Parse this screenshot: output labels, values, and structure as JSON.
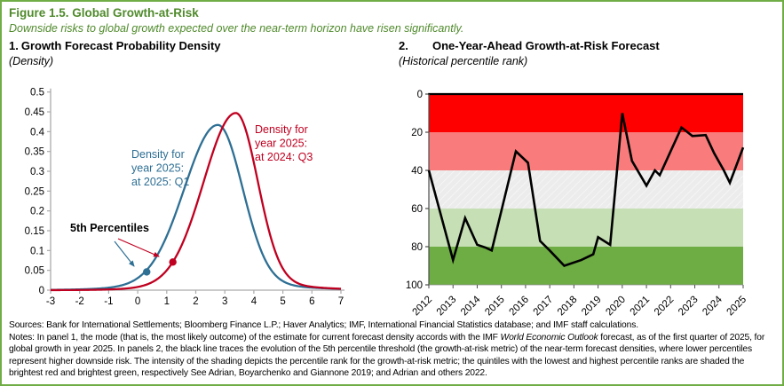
{
  "figure": {
    "title": "Figure 1.5. Global Growth-at-Risk",
    "subtitle": "Downside risks to global growth expected over the near-term horizon have risen significantly.",
    "title_color": "#4F8A2B",
    "border_color": "#71AD47"
  },
  "panel1": {
    "number": "1.",
    "title": "Growth Forecast Probability Density",
    "unit": "(Density)"
  },
  "panel2": {
    "number": "2.",
    "title": "One-Year-Ahead Growth-at-Risk Forecast",
    "unit": "(Historical percentile rank)"
  },
  "footer": {
    "sources": "Sources: Bank for International Settlements; Bloomberg Finance L.P.; Haver Analytics; IMF, International Financial Statistics database; and IMF staff calculations.",
    "notes_prefix": "Notes: In panel 1, the mode (that is, the most likely outcome) of the estimate for current forecast density accords with the IMF ",
    "notes_italic": "World Economic Outlook",
    "notes_suffix": " forecast, as of the first quarter of 2025, for global growth in year 2025. In panels 2, the black line traces the evolution of the 5th percentile threshold (the growth-at-risk metric) of the near-term forecast densities, where lower percentiles represent higher downside risk. The intensity of the shading depicts the percentile rank for the growth-at-risk metric; the quintiles with the lowest and highest percentile ranks are shaded the brightest red and brightest green, respectively See Adrian, Boyarchenko and Giannone 2019; and Adrian and others 2022."
  },
  "chart_data": [
    {
      "type": "line",
      "panel": "1",
      "title": "Growth Forecast Probability Density",
      "ylabel": "Density",
      "xlim": [
        -3,
        7
      ],
      "ylim": [
        0,
        0.5
      ],
      "x_ticks": [
        -3,
        -2,
        -1,
        0,
        1,
        2,
        3,
        4,
        5,
        6,
        7
      ],
      "y_ticks": [
        0.5,
        0.45,
        0.4,
        0.35,
        0.3,
        0.25,
        0.2,
        0.15,
        0.1,
        0.05,
        0
      ],
      "grid": false,
      "annotations": {
        "percentiles_label": "5th Percentiles"
      },
      "series": [
        {
          "name": "Density for year 2025: at 2025: Q1",
          "color": "#2E6F94",
          "peak_x": 2.76,
          "peak_y": 0.417,
          "sigma_left": 1.15,
          "sigma_right": 0.85,
          "tail_sigma": 2.3,
          "percentile5": [
            0.31,
            0.046
          ],
          "label_lines": [
            "Density for",
            "year 2025:",
            "at 2025: Q1"
          ]
        },
        {
          "name": "Density for year 2025: at 2024: Q3",
          "color": "#C00020",
          "peak_x": 3.38,
          "peak_y": 0.447,
          "sigma_left": 1.1,
          "sigma_right": 0.75,
          "tail_sigma": 2.0,
          "percentile5": [
            1.21,
            0.071
          ],
          "label_lines": [
            "Density for",
            "year 2025:",
            "at 2024: Q3"
          ]
        }
      ]
    },
    {
      "type": "line",
      "panel": "2",
      "title": "One-Year-Ahead Growth-at-Risk Forecast",
      "ylabel": "Historical percentile rank",
      "xlim": [
        2012,
        2025
      ],
      "ylim": [
        0,
        100
      ],
      "y_axis_inverted": true,
      "x_ticks": [
        2012,
        2013,
        2014,
        2015,
        2016,
        2017,
        2018,
        2019,
        2020,
        2021,
        2022,
        2023,
        2024,
        2025
      ],
      "y_ticks": [
        0,
        20,
        40,
        60,
        80,
        100
      ],
      "bands": [
        {
          "from": 0,
          "to": 20,
          "color": "#FE0000"
        },
        {
          "from": 20,
          "to": 40,
          "color": "#F97B7B"
        },
        {
          "from": 40,
          "to": 60,
          "color": "#ECECEC",
          "hatch": true
        },
        {
          "from": 60,
          "to": 80,
          "color": "#C6DFB5"
        },
        {
          "from": 80,
          "to": 100,
          "color": "#6EAC44"
        }
      ],
      "line_color": "#000000",
      "points": [
        [
          2012.0,
          40
        ],
        [
          2013.0,
          87
        ],
        [
          2013.5,
          65
        ],
        [
          2014.0,
          79
        ],
        [
          2014.35,
          80.5
        ],
        [
          2014.6,
          82
        ],
        [
          2015.6,
          30
        ],
        [
          2016.1,
          36
        ],
        [
          2016.6,
          77
        ],
        [
          2017.0,
          82
        ],
        [
          2017.6,
          90
        ],
        [
          2018.3,
          87
        ],
        [
          2018.8,
          84
        ],
        [
          2019.0,
          75
        ],
        [
          2019.5,
          79
        ],
        [
          2020.0,
          10
        ],
        [
          2020.4,
          35
        ],
        [
          2021.0,
          48
        ],
        [
          2021.35,
          40
        ],
        [
          2021.55,
          42.5
        ],
        [
          2022.45,
          17.5
        ],
        [
          2022.9,
          22
        ],
        [
          2023.45,
          21.5
        ],
        [
          2023.8,
          31
        ],
        [
          2024.2,
          40
        ],
        [
          2024.45,
          46.5
        ],
        [
          2025.0,
          28
        ]
      ]
    }
  ]
}
